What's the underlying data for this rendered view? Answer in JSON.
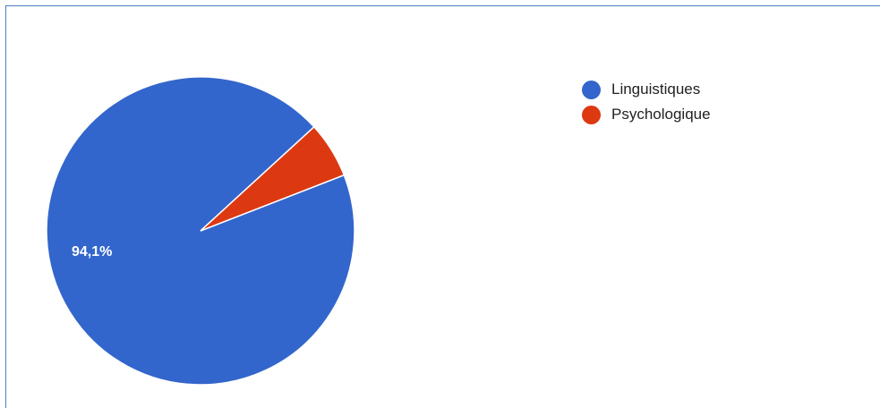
{
  "chart_data": {
    "type": "pie",
    "categories": [
      "Linguistiques",
      "Psychologique"
    ],
    "values": [
      94.1,
      5.9
    ],
    "colors": [
      "#3366cc",
      "#dc3912"
    ],
    "data_labels": [
      "94,1%",
      ""
    ],
    "legend_position": "right",
    "title": ""
  }
}
